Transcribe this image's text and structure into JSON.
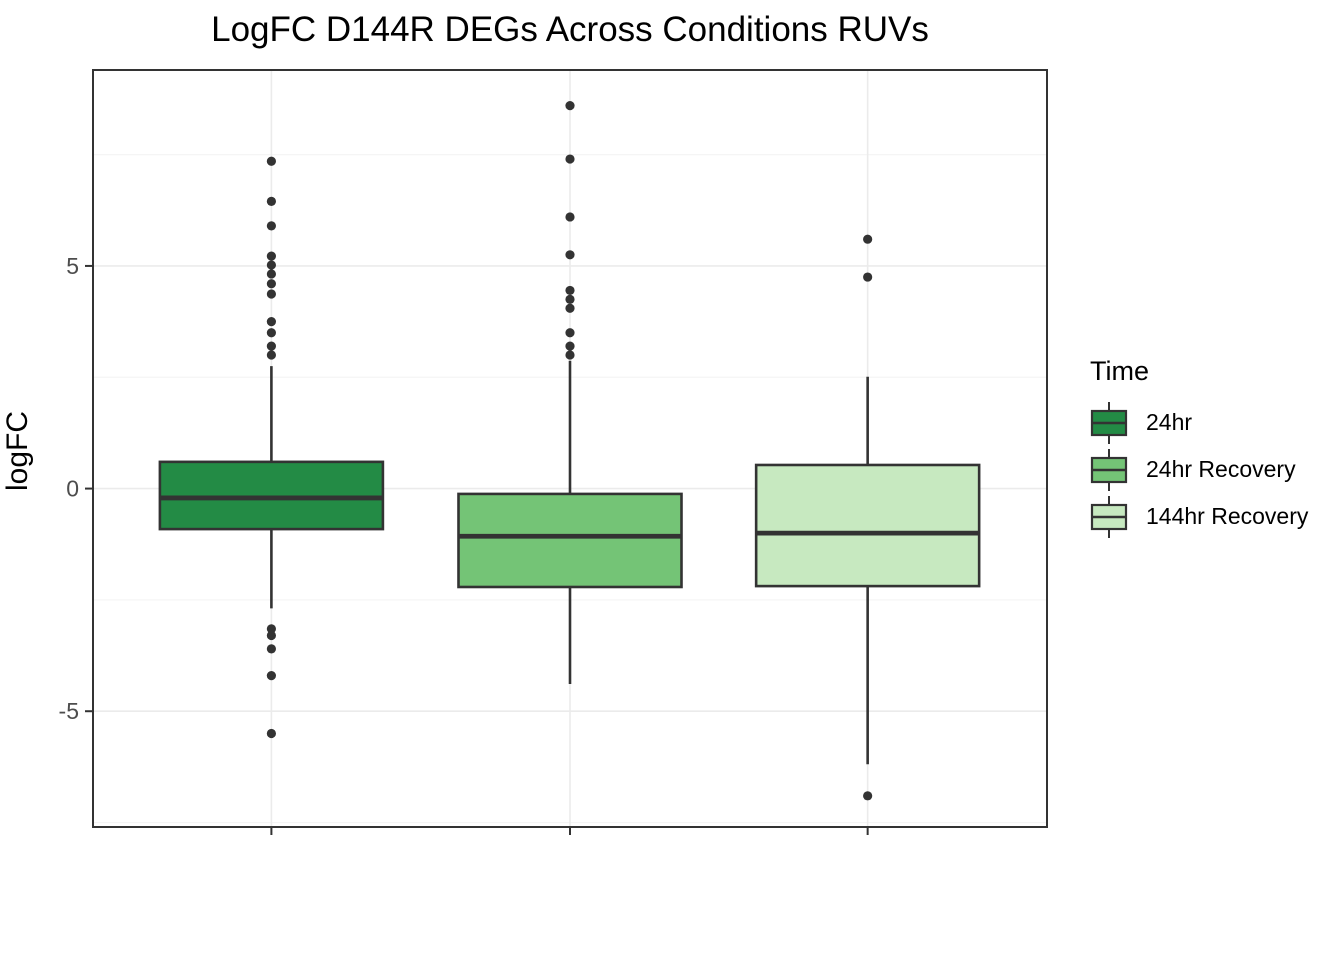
{
  "chart_data": {
    "type": "boxplot",
    "title": "LogFC D144R DEGs Across Conditions RUVs",
    "ylabel": "logFC",
    "xlabel": "",
    "ylim": [
      -7.6,
      9.4
    ],
    "y_major_ticks": [
      {
        "value": 5,
        "label": "5"
      },
      {
        "value": 0,
        "label": "0"
      },
      {
        "value": -5,
        "label": "-5"
      }
    ],
    "y_minor_gridlines": [
      7.5,
      2.5,
      -2.5,
      -7.5
    ],
    "x_tick_labels": [
      "",
      "",
      ""
    ],
    "grid": "on",
    "legend": {
      "title": "Time",
      "position": "right"
    },
    "style": {
      "panel_background": "#ffffff",
      "panel_border_color": "#333333",
      "grid_major_color": "#ebebeb",
      "grid_minor_color": "#f5f5f5",
      "outline_color": "#333333",
      "outlier_color": "#333333",
      "tick_label_color": "#4d4d4d",
      "tick_mark_color": "#333333"
    },
    "series": [
      {
        "name": "24hr",
        "fill": "#238b45",
        "center_frac": 0.187,
        "q1": -0.91,
        "median": -0.21,
        "q3": 0.6,
        "whisker_low": -2.69,
        "whisker_high": 2.75,
        "outliers": [
          7.35,
          6.45,
          5.9,
          5.22,
          5.02,
          4.82,
          4.6,
          4.37,
          3.75,
          3.5,
          3.2,
          3.0,
          -3.15,
          -3.3,
          -3.6,
          -4.2,
          -5.5
        ]
      },
      {
        "name": "24hr Recovery",
        "fill": "#74c476",
        "center_frac": 0.5,
        "q1": -2.21,
        "median": -1.07,
        "q3": -0.12,
        "whisker_low": -4.39,
        "whisker_high": 2.87,
        "outliers": [
          8.6,
          7.4,
          6.1,
          5.25,
          4.45,
          4.25,
          4.05,
          3.5,
          3.2,
          3.0
        ]
      },
      {
        "name": "144hr Recovery",
        "fill": "#c7e9c0",
        "center_frac": 0.812,
        "q1": -2.19,
        "median": -1.0,
        "q3": 0.53,
        "whisker_low": -6.19,
        "whisker_high": 2.51,
        "outliers": [
          5.6,
          4.75,
          -6.9
        ]
      }
    ]
  }
}
